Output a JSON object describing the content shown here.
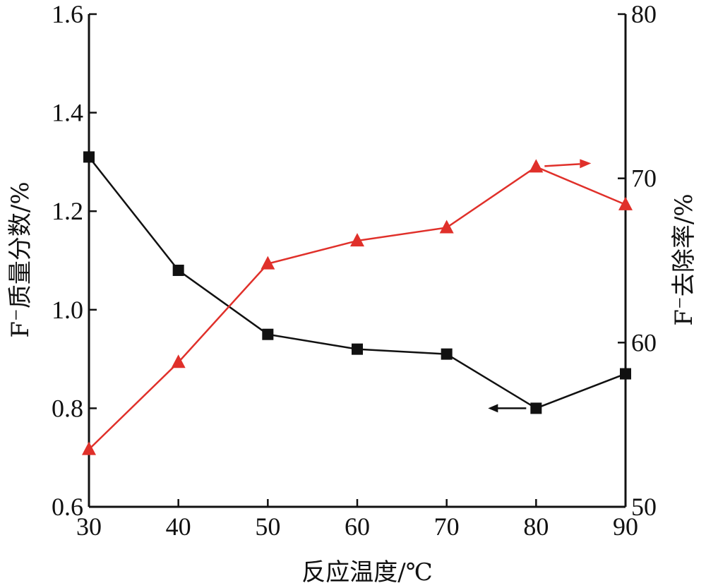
{
  "chart_data": {
    "type": "line",
    "title": "",
    "xlabel": "反应温度/℃",
    "ylabel_left": "F⁻质量分数/%",
    "ylabel_right": "F⁻去除率/%",
    "x": [
      30,
      40,
      50,
      60,
      70,
      80,
      90
    ],
    "x_ticks": [
      "30",
      "40",
      "50",
      "60",
      "70",
      "80",
      "90"
    ],
    "xlim": [
      30,
      90
    ],
    "ylim_left": [
      0.6,
      1.6
    ],
    "ylim_right": [
      50,
      80
    ],
    "left_ticks": [
      "0.6",
      "0.8",
      "1.0",
      "1.2",
      "1.4",
      "1.6"
    ],
    "right_ticks": [
      "50",
      "60",
      "70",
      "80"
    ],
    "grid": false,
    "series": [
      {
        "axis": "left",
        "marker": "square",
        "color": "#111111",
        "values": [
          1.31,
          1.08,
          0.95,
          0.92,
          0.91,
          0.8,
          0.87
        ]
      },
      {
        "axis": "right",
        "marker": "triangle",
        "color": "#e0302a",
        "values": [
          53.5,
          58.8,
          64.8,
          66.2,
          67.0,
          70.7,
          68.4
        ]
      }
    ]
  }
}
